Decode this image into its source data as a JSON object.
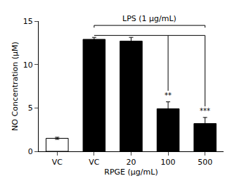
{
  "chart_data": {
    "type": "bar",
    "categories": [
      "VC",
      "VC",
      "20",
      "100",
      "500"
    ],
    "values": [
      1.5,
      12.9,
      12.7,
      4.9,
      3.2
    ],
    "errors": [
      0.12,
      0.22,
      0.42,
      0.8,
      0.7
    ],
    "colors": [
      "white",
      "black",
      "black",
      "black",
      "black"
    ],
    "xlabel": "RPGE (μg/mL)",
    "ylabel": "NO Concentration (μM)",
    "ylim": [
      0,
      15
    ],
    "yticks": [
      0,
      5,
      10,
      15
    ],
    "grid": false,
    "annotations": [
      {
        "text": "**",
        "category": "100"
      },
      {
        "text": "***",
        "category": "500"
      },
      {
        "text": "LPS (1 μg/mL)"
      }
    ]
  }
}
